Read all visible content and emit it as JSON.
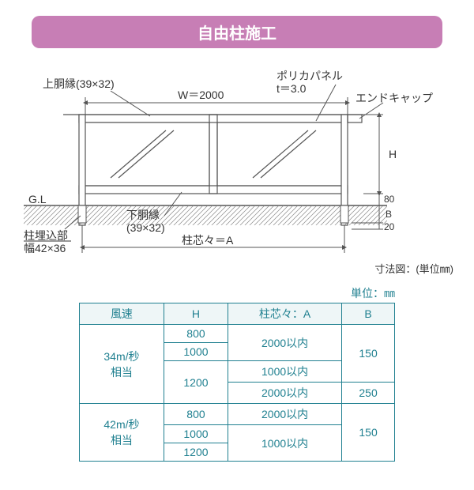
{
  "title": "自由柱施工",
  "diagram": {
    "labels": {
      "top_rail": "上胴縁(39×32)",
      "width": "W＝2000",
      "panel": "ポリカパネル",
      "thickness": "t＝3.0",
      "end_cap": "エンドキャップ",
      "gl": "G.L",
      "bottom_rail": "下胴縁",
      "bottom_rail_dim": "(39×32)",
      "embed": "柱埋込部",
      "embed_dim": "幅42×36",
      "center": "柱芯々＝A",
      "h": "H",
      "d80": "80",
      "dB": "B",
      "d20": "20",
      "caption": "寸法図：(単位㎜)"
    },
    "colors": {
      "line": "#555",
      "hatch": "#888",
      "text": "#333"
    }
  },
  "table": {
    "unit": "単位：㎜",
    "headers": [
      "風速",
      "H",
      "柱芯々：A",
      "B"
    ],
    "groups": [
      {
        "wind": "34m/秒\n相当",
        "rows": [
          {
            "h": "800",
            "a": "2000以内",
            "a_span": 2,
            "b": "150",
            "b_span": 3
          },
          {
            "h": "1000"
          },
          {
            "h": "1200",
            "h_span": 2,
            "a": "1000以内"
          },
          {
            "a": "2000以内",
            "b": "250"
          }
        ]
      },
      {
        "wind": "42m/秒\n相当",
        "rows": [
          {
            "h": "800",
            "a": "2000以内",
            "b": "150",
            "b_span": 3
          },
          {
            "h": "1000",
            "a": "1000以内",
            "a_span": 2
          },
          {
            "h": "1200"
          }
        ]
      }
    ]
  }
}
